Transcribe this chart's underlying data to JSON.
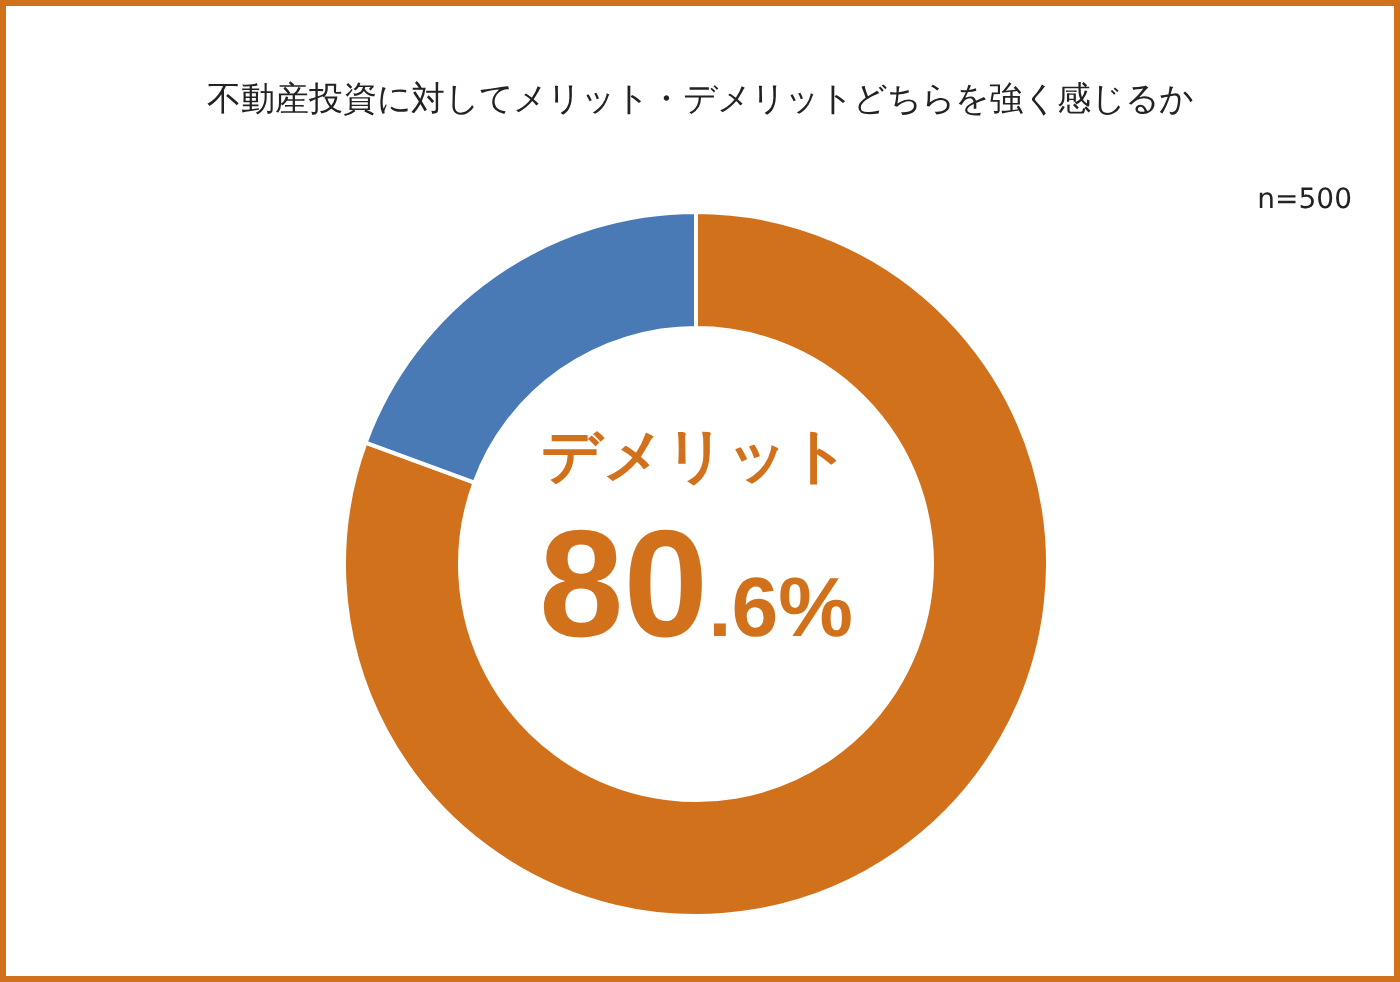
{
  "chart_data": {
    "type": "donut",
    "title": "不動産投資に対してメリット・デメリットどちらを強く感じるか",
    "annotations": [
      "n=500"
    ],
    "categories": [
      "デメリット",
      null
    ],
    "values": [
      80.6,
      19.4
    ],
    "colors": [
      "#d2711c",
      "#4a7ab5"
    ],
    "value_labels": [
      "80.6%",
      null
    ]
  }
}
